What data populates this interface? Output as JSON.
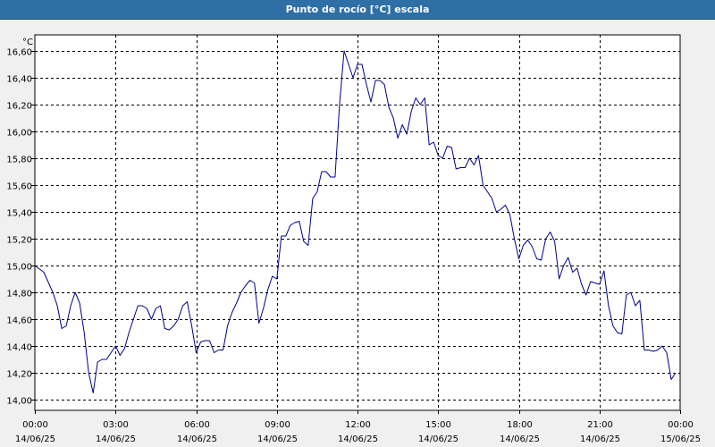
{
  "window": {
    "title": "Punto de rocío [°C] escala"
  },
  "colors": {
    "series": "#00008b",
    "grid": "#000000",
    "title_bar": "#2e6fa6",
    "plot_bg": "#ffffff"
  },
  "chart_data": {
    "type": "line",
    "title": "Punto de rocío [°C] escala",
    "ylabel": "°C",
    "xlabel": "",
    "grid": true,
    "ylim": [
      13.92,
      16.72
    ],
    "xlim": [
      "14/06/25 00:00",
      "15/06/25 00:00"
    ],
    "y_ticks": [
      "14,00",
      "14,20",
      "14,40",
      "14,60",
      "14,80",
      "15,00",
      "15,20",
      "15,40",
      "15,60",
      "15,80",
      "16,00",
      "16,20",
      "16,40",
      "16,60"
    ],
    "x_ticks": [
      {
        "time": "00:00",
        "date": "14/06/25"
      },
      {
        "time": "03:00",
        "date": "14/06/25"
      },
      {
        "time": "06:00",
        "date": "14/06/25"
      },
      {
        "time": "09:00",
        "date": "14/06/25"
      },
      {
        "time": "12:00",
        "date": "14/06/25"
      },
      {
        "time": "15:00",
        "date": "14/06/25"
      },
      {
        "time": "18:00",
        "date": "14/06/25"
      },
      {
        "time": "21:00",
        "date": "14/06/25"
      },
      {
        "time": "00:00",
        "date": "15/06/25"
      }
    ],
    "series": [
      {
        "x": [
          "14/06/25 00:00",
          "14/06/25 00:20",
          "14/06/25 00:40",
          "14/06/25 00:50",
          "14/06/25 01:00",
          "14/06/25 01:10",
          "14/06/25 01:20",
          "14/06/25 01:30",
          "14/06/25 01:40",
          "14/06/25 01:50",
          "14/06/25 02:00",
          "14/06/25 02:10",
          "14/06/25 02:20",
          "14/06/25 02:30",
          "14/06/25 02:40",
          "14/06/25 02:50",
          "14/06/25 03:00",
          "14/06/25 03:10",
          "14/06/25 03:20",
          "14/06/25 03:30",
          "14/06/25 03:40",
          "14/06/25 03:50",
          "14/06/25 04:00",
          "14/06/25 04:10",
          "14/06/25 04:20",
          "14/06/25 04:30",
          "14/06/25 04:40",
          "14/06/25 04:50",
          "14/06/25 05:00",
          "14/06/25 05:10",
          "14/06/25 05:20",
          "14/06/25 05:30",
          "14/06/25 05:40",
          "14/06/25 05:50",
          "14/06/25 06:00",
          "14/06/25 06:10",
          "14/06/25 06:20",
          "14/06/25 06:30",
          "14/06/25 06:40",
          "14/06/25 06:50",
          "14/06/25 07:00",
          "14/06/25 07:10",
          "14/06/25 07:20",
          "14/06/25 07:30",
          "14/06/25 07:40",
          "14/06/25 07:50",
          "14/06/25 08:00",
          "14/06/25 08:10",
          "14/06/25 08:20",
          "14/06/25 08:30",
          "14/06/25 08:40",
          "14/06/25 08:50",
          "14/06/25 09:00",
          "14/06/25 09:10",
          "14/06/25 09:20",
          "14/06/25 09:30",
          "14/06/25 09:40",
          "14/06/25 09:50",
          "14/06/25 10:00",
          "14/06/25 10:10",
          "14/06/25 10:20",
          "14/06/25 10:30",
          "14/06/25 10:40",
          "14/06/25 10:50",
          "14/06/25 11:00",
          "14/06/25 11:10",
          "14/06/25 11:20",
          "14/06/25 11:30",
          "14/06/25 11:40",
          "14/06/25 11:50",
          "14/06/25 12:00",
          "14/06/25 12:10",
          "14/06/25 12:20",
          "14/06/25 12:30",
          "14/06/25 12:40",
          "14/06/25 12:50",
          "14/06/25 13:00",
          "14/06/25 13:10",
          "14/06/25 13:20",
          "14/06/25 13:30",
          "14/06/25 13:40",
          "14/06/25 13:50",
          "14/06/25 14:00",
          "14/06/25 14:10",
          "14/06/25 14:20",
          "14/06/25 14:30",
          "14/06/25 14:40",
          "14/06/25 14:50",
          "14/06/25 15:00",
          "14/06/25 15:10",
          "14/06/25 15:20",
          "14/06/25 15:30",
          "14/06/25 15:40",
          "14/06/25 15:50",
          "14/06/25 16:00",
          "14/06/25 16:10",
          "14/06/25 16:20",
          "14/06/25 16:30",
          "14/06/25 16:40",
          "14/06/25 16:50",
          "14/06/25 17:00",
          "14/06/25 17:10",
          "14/06/25 17:20",
          "14/06/25 17:30",
          "14/06/25 17:40",
          "14/06/25 17:50",
          "14/06/25 18:00",
          "14/06/25 18:10",
          "14/06/25 18:20",
          "14/06/25 18:30",
          "14/06/25 18:40",
          "14/06/25 18:50",
          "14/06/25 19:00",
          "14/06/25 19:10",
          "14/06/25 19:20",
          "14/06/25 19:30",
          "14/06/25 19:40",
          "14/06/25 19:50",
          "14/06/25 20:00",
          "14/06/25 20:10",
          "14/06/25 20:20",
          "14/06/25 20:30",
          "14/06/25 20:40",
          "14/06/25 20:50",
          "14/06/25 21:00",
          "14/06/25 21:10",
          "14/06/25 21:20",
          "14/06/25 21:30",
          "14/06/25 21:40",
          "14/06/25 21:50",
          "14/06/25 22:00",
          "14/06/25 22:10",
          "14/06/25 22:20",
          "14/06/25 22:30",
          "14/06/25 22:40",
          "14/06/25 22:50",
          "14/06/25 23:00",
          "14/06/25 23:10",
          "14/06/25 23:20",
          "14/06/25 23:30",
          "14/06/25 23:40",
          "14/06/25 23:50"
        ],
        "y": [
          15.0,
          14.95,
          14.8,
          14.7,
          14.53,
          14.55,
          14.7,
          14.8,
          14.72,
          14.5,
          14.2,
          14.05,
          14.28,
          14.3,
          14.3,
          14.35,
          14.4,
          14.33,
          14.38,
          14.5,
          14.6,
          14.7,
          14.7,
          14.68,
          14.6,
          14.68,
          14.7,
          14.53,
          14.52,
          14.55,
          14.6,
          14.7,
          14.73,
          14.55,
          14.35,
          14.43,
          14.44,
          14.44,
          14.35,
          14.37,
          14.37,
          14.55,
          14.65,
          14.72,
          14.8,
          14.85,
          14.89,
          14.87,
          14.57,
          14.68,
          14.82,
          14.92,
          14.9,
          15.22,
          15.22,
          15.3,
          15.32,
          15.33,
          15.18,
          15.15,
          15.5,
          15.55,
          15.7,
          15.7,
          15.66,
          15.66,
          16.2,
          16.6,
          16.5,
          16.4,
          16.5,
          16.5,
          16.35,
          16.22,
          16.38,
          16.38,
          16.35,
          16.18,
          16.1,
          15.95,
          16.05,
          15.98,
          16.15,
          16.25,
          16.2,
          16.25,
          15.9,
          15.92,
          15.82,
          15.8,
          15.89,
          15.88,
          15.72,
          15.73,
          15.73,
          15.8,
          15.75,
          15.82,
          15.6,
          15.55,
          15.5,
          15.4,
          15.42,
          15.45,
          15.38,
          15.2,
          15.05,
          15.15,
          15.19,
          15.14,
          15.05,
          15.04,
          15.2,
          15.25,
          15.18,
          14.9,
          15.0,
          15.06,
          14.95,
          14.98,
          14.86,
          14.78,
          14.88,
          14.87,
          14.86,
          14.96,
          14.7,
          14.55,
          14.5,
          14.49,
          14.78,
          14.8,
          14.7,
          14.74,
          14.37,
          14.37,
          14.36,
          14.37,
          14.4,
          14.35,
          14.15,
          14.2
        ]
      }
    ]
  }
}
